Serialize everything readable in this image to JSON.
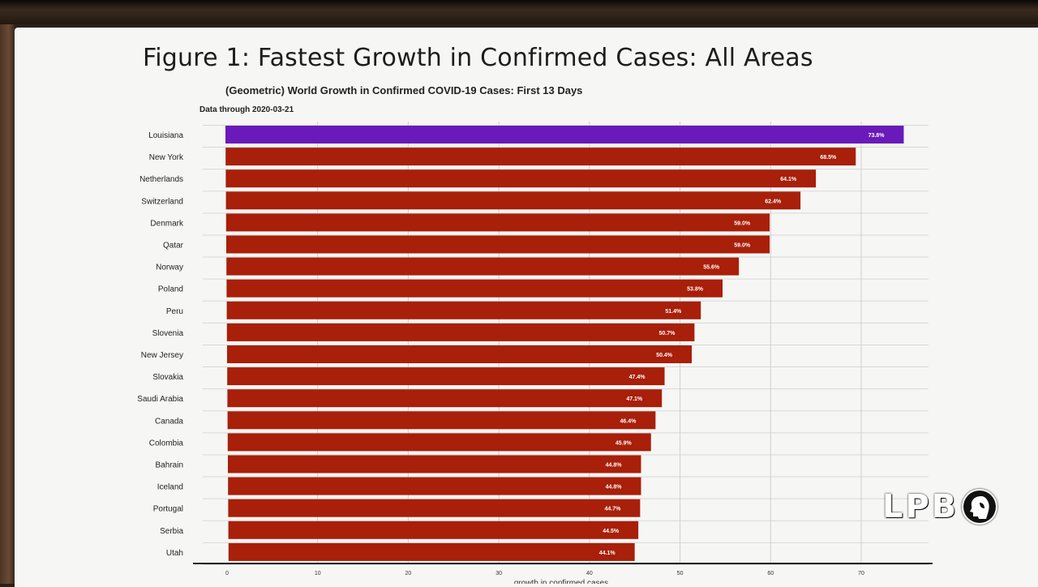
{
  "slide": {
    "title": "Figure 1: Fastest Growth in Confirmed Cases: All Areas"
  },
  "logo": {
    "text": "LPB",
    "icon": "pbs-head-icon"
  },
  "chart_data": {
    "type": "bar",
    "orientation": "horizontal",
    "title": "(Geometric) World Growth in Confirmed COVID-19 Cases: First 13 Days",
    "subtitle": "Data through 2020-03-21",
    "xlabel": "growth in confirmed cases",
    "xlim": [
      0,
      78
    ],
    "xticks": [
      0,
      10,
      20,
      30,
      40,
      50,
      60,
      70
    ],
    "grid": true,
    "highlight_color": "#6a1ab8",
    "bar_color": "#a81f0a",
    "categories": [
      "Louisiana",
      "New York",
      "Netherlands",
      "Switzerland",
      "Denmark",
      "Qatar",
      "Norway",
      "Poland",
      "Peru",
      "Slovenia",
      "New Jersey",
      "Slovakia",
      "Saudi Arabia",
      "Canada",
      "Colombia",
      "Bahrain",
      "Iceland",
      "Portugal",
      "Serbia",
      "Utah"
    ],
    "values": [
      73.8,
      68.5,
      64.1,
      62.4,
      59.0,
      59.0,
      55.6,
      53.8,
      51.4,
      50.7,
      50.4,
      47.4,
      47.1,
      46.4,
      45.9,
      44.8,
      44.8,
      44.7,
      44.5,
      44.1
    ],
    "labels": [
      "73.8%",
      "68.5%",
      "64.1%",
      "62.4%",
      "59.0%",
      "59.0%",
      "55.6%",
      "53.8%",
      "51.4%",
      "50.7%",
      "50.4%",
      "47.4%",
      "47.1%",
      "46.4%",
      "45.9%",
      "44.8%",
      "44.8%",
      "44.7%",
      "44.5%",
      "44.1%"
    ],
    "highlighted": [
      "Louisiana"
    ]
  }
}
